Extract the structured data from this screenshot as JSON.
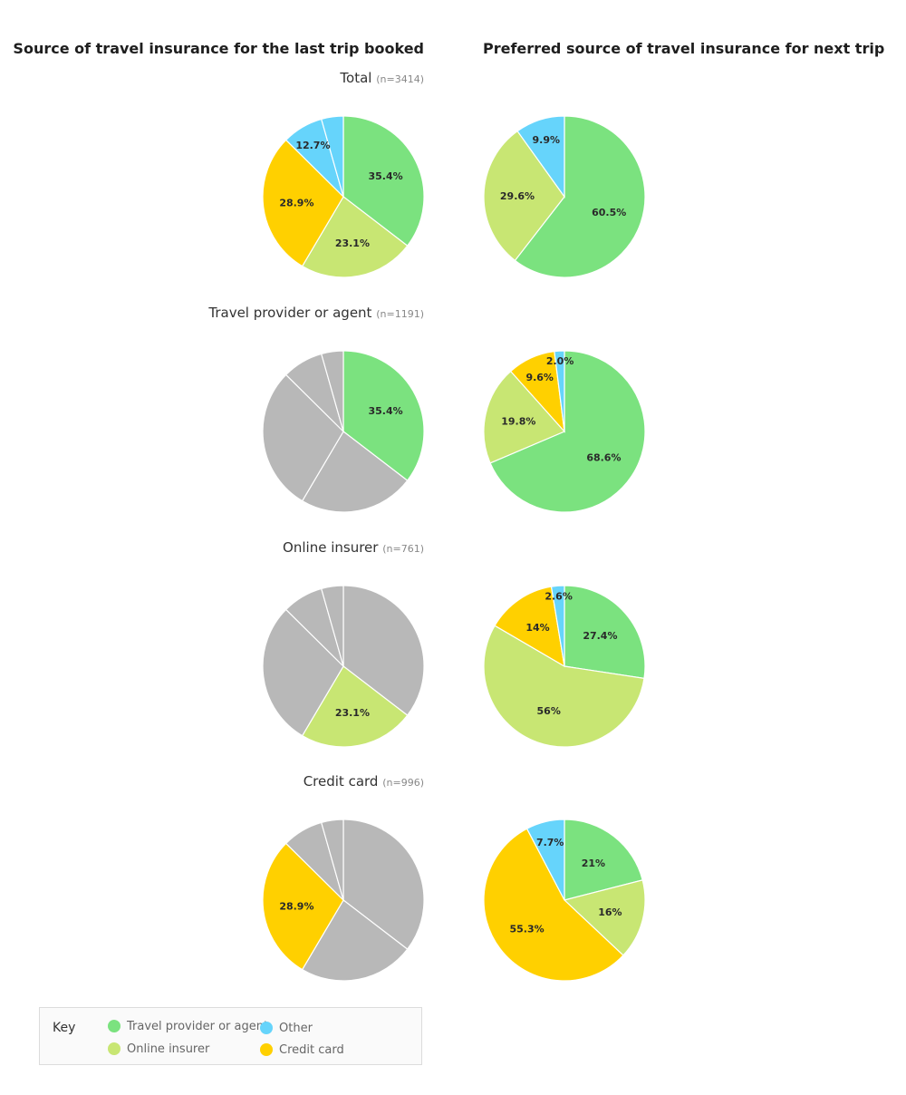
{
  "colors": {
    "travel_provider": "#7be27f",
    "online_insurer": "#c8e673",
    "credit_card": "#ffd000",
    "other": "#66d4fb",
    "inactive": "#b8b8b8"
  },
  "headers": {
    "left": "Source of travel insurance for the last trip booked",
    "right": "Preferred source of travel insurance for next trip"
  },
  "key": {
    "title": "Key",
    "items": [
      {
        "label": "Travel provider or agent",
        "color": "#7be27f"
      },
      {
        "label": "Online insurer",
        "color": "#c8e673"
      },
      {
        "label": "Other",
        "color": "#66d4fb"
      },
      {
        "label": "Credit card",
        "color": "#ffd000"
      }
    ]
  },
  "chart_data": [
    {
      "type": "pie",
      "title": "Total",
      "n": "(n=3414)",
      "panel": "last trip",
      "slices": [
        {
          "category": "Travel provider or agent",
          "value": 35.4,
          "label": "35.4%",
          "active": true
        },
        {
          "category": "Online insurer",
          "value": 23.1,
          "label": "23.1%",
          "active": true
        },
        {
          "category": "Credit card",
          "value": 28.9,
          "label": "28.9%",
          "active": true
        },
        {
          "category": "Other",
          "value": 8.2,
          "label": "12.7%",
          "active": true
        },
        {
          "category": "Other",
          "value": 4.4,
          "label": "",
          "active": true
        }
      ]
    },
    {
      "type": "pie",
      "title": "Total",
      "panel": "next trip",
      "slices": [
        {
          "category": "Travel provider or agent",
          "value": 60.5,
          "label": "60.5%",
          "active": true
        },
        {
          "category": "Online insurer",
          "value": 29.6,
          "label": "29.6%",
          "active": true
        },
        {
          "category": "Other",
          "value": 9.9,
          "label": "9.9%",
          "active": true
        }
      ]
    },
    {
      "type": "pie",
      "title": "Travel provider or agent",
      "n": "(n=1191)",
      "panel": "last trip",
      "slices": [
        {
          "category": "Travel provider or agent",
          "value": 35.4,
          "label": "35.4%",
          "active": true
        },
        {
          "category": "Online insurer",
          "value": 23.1,
          "label": "",
          "active": false
        },
        {
          "category": "Credit card",
          "value": 28.9,
          "label": "",
          "active": false
        },
        {
          "category": "Other",
          "value": 8.2,
          "label": "",
          "active": false
        },
        {
          "category": "Other",
          "value": 4.4,
          "label": "",
          "active": false
        }
      ]
    },
    {
      "type": "pie",
      "title": "Travel provider or agent",
      "panel": "next trip",
      "slices": [
        {
          "category": "Travel provider or agent",
          "value": 68.6,
          "label": "68.6%",
          "active": true
        },
        {
          "category": "Online insurer",
          "value": 19.8,
          "label": "19.8%",
          "active": true
        },
        {
          "category": "Credit card",
          "value": 9.6,
          "label": "9.6%",
          "active": true
        },
        {
          "category": "Other",
          "value": 2.0,
          "label": "2.0%",
          "active": true
        }
      ]
    },
    {
      "type": "pie",
      "title": "Online insurer",
      "n": "(n=761)",
      "panel": "last trip",
      "slices": [
        {
          "category": "Travel provider or agent",
          "value": 35.4,
          "label": "",
          "active": false
        },
        {
          "category": "Online insurer",
          "value": 23.1,
          "label": "23.1%",
          "active": true
        },
        {
          "category": "Credit card",
          "value": 28.9,
          "label": "",
          "active": false
        },
        {
          "category": "Other",
          "value": 8.2,
          "label": "",
          "active": false
        },
        {
          "category": "Other",
          "value": 4.4,
          "label": "",
          "active": false
        }
      ]
    },
    {
      "type": "pie",
      "title": "Online insurer",
      "panel": "next trip",
      "slices": [
        {
          "category": "Travel provider or agent",
          "value": 27.4,
          "label": "27.4%",
          "active": true
        },
        {
          "category": "Online insurer",
          "value": 56,
          "label": "56%",
          "active": true
        },
        {
          "category": "Credit card",
          "value": 14,
          "label": "14%",
          "active": true
        },
        {
          "category": "Other",
          "value": 2.6,
          "label": "2.6%",
          "active": true
        }
      ]
    },
    {
      "type": "pie",
      "title": "Credit card",
      "n": "(n=996)",
      "panel": "last trip",
      "slices": [
        {
          "category": "Travel provider or agent",
          "value": 35.4,
          "label": "",
          "active": false
        },
        {
          "category": "Online insurer",
          "value": 23.1,
          "label": "",
          "active": false
        },
        {
          "category": "Credit card",
          "value": 28.9,
          "label": "28.9%",
          "active": true
        },
        {
          "category": "Other",
          "value": 8.2,
          "label": "",
          "active": false
        },
        {
          "category": "Other",
          "value": 4.4,
          "label": "",
          "active": false
        }
      ]
    },
    {
      "type": "pie",
      "title": "Credit card",
      "panel": "next trip",
      "slices": [
        {
          "category": "Travel provider or agent",
          "value": 21,
          "label": "21%",
          "active": true
        },
        {
          "category": "Online insurer",
          "value": 16,
          "label": "16%",
          "active": true
        },
        {
          "category": "Credit card",
          "value": 55.3,
          "label": "55.3%",
          "active": true
        },
        {
          "category": "Other",
          "value": 7.7,
          "label": "7.7%",
          "active": true
        }
      ]
    }
  ]
}
